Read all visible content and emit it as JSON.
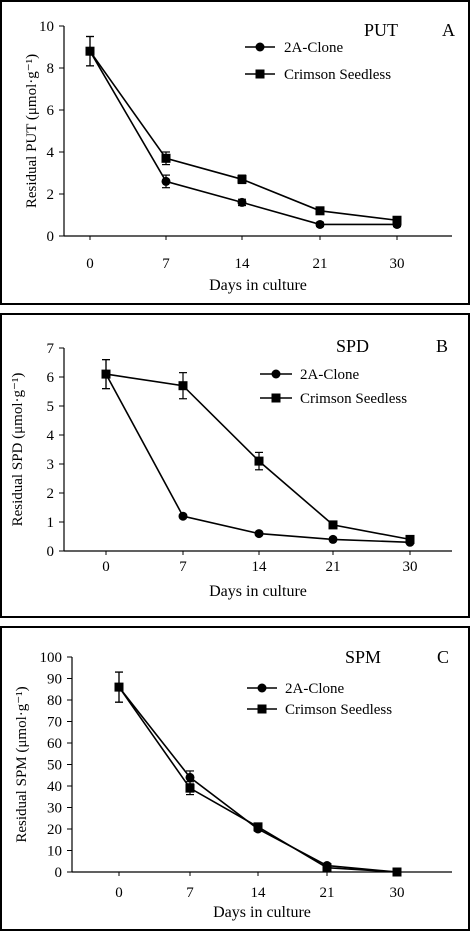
{
  "chart_data": [
    {
      "type": "line",
      "panel_label": "A",
      "title": "PUT",
      "xlabel": "Days in culture",
      "ylabel": "Residual PUT (μmol·g⁻¹)",
      "categories": [
        "0",
        "7",
        "14",
        "21",
        "30"
      ],
      "ylim": [
        0,
        10
      ],
      "yticks": [
        0,
        2,
        4,
        6,
        8,
        10
      ],
      "legend_position": "top-right",
      "series": [
        {
          "name": "2A-Clone",
          "marker": "circle",
          "values": [
            8.8,
            2.6,
            1.6,
            0.55,
            0.55
          ],
          "errors": [
            0.7,
            0.3,
            0.15,
            0.1,
            0.1
          ]
        },
        {
          "name": "Crimson Seedless",
          "marker": "square",
          "values": [
            8.8,
            3.7,
            2.7,
            1.2,
            0.75
          ],
          "errors": [
            0.7,
            0.3,
            0.2,
            0.15,
            0.15
          ]
        }
      ]
    },
    {
      "type": "line",
      "panel_label": "B",
      "title": "SPD",
      "xlabel": "Days in culture",
      "ylabel": "Residual SPD (μmol·g⁻¹)",
      "categories": [
        "0",
        "7",
        "14",
        "21",
        "30"
      ],
      "ylim": [
        0,
        7
      ],
      "yticks": [
        0,
        1,
        2,
        3,
        4,
        5,
        6,
        7
      ],
      "legend_position": "top-right",
      "series": [
        {
          "name": "2A-Clone",
          "marker": "circle",
          "values": [
            6.1,
            1.2,
            0.6,
            0.4,
            0.3
          ],
          "errors": [
            0.5,
            0.05,
            0.05,
            0.05,
            0.05
          ]
        },
        {
          "name": "Crimson Seedless",
          "marker": "square",
          "values": [
            6.1,
            5.7,
            3.1,
            0.9,
            0.4
          ],
          "errors": [
            0.5,
            0.45,
            0.3,
            0.08,
            0.05
          ]
        }
      ]
    },
    {
      "type": "line",
      "panel_label": "C",
      "title": "SPM",
      "xlabel": "Days in culture",
      "ylabel": "Residual  SPM (μmol·g⁻¹)",
      "categories": [
        "0",
        "7",
        "14",
        "21",
        "30"
      ],
      "ylim": [
        0,
        100
      ],
      "yticks": [
        0,
        10,
        20,
        30,
        40,
        50,
        60,
        70,
        80,
        90,
        100
      ],
      "legend_position": "top-right",
      "series": [
        {
          "name": "2A-Clone",
          "marker": "circle",
          "values": [
            86,
            44,
            20,
            3,
            0
          ],
          "errors": [
            7,
            3,
            1,
            1,
            0
          ]
        },
        {
          "name": "Crimson Seedless",
          "marker": "square",
          "values": [
            86,
            39,
            21,
            2,
            0
          ],
          "errors": [
            7,
            3,
            1,
            1,
            0
          ]
        }
      ]
    }
  ]
}
